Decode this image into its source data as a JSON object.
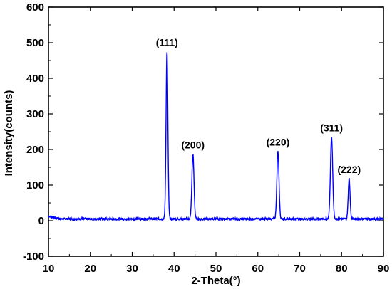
{
  "chart_data": {
    "type": "line",
    "title": "",
    "xlabel": "2-Theta(°)",
    "ylabel": "Intensity(counts)",
    "xlim": [
      10,
      90
    ],
    "ylim": [
      -100,
      600
    ],
    "xticks": [
      10,
      20,
      30,
      40,
      50,
      60,
      70,
      80,
      90
    ],
    "yticks": [
      -100,
      0,
      100,
      200,
      300,
      400,
      500,
      600
    ],
    "grid": false,
    "line_color": "#0000ff",
    "baseline": 5,
    "peaks": [
      {
        "label": "(111)",
        "x": 38.3,
        "y": 475
      },
      {
        "label": "(200)",
        "x": 44.5,
        "y": 187
      },
      {
        "label": "(220)",
        "x": 64.8,
        "y": 195
      },
      {
        "label": "(311)",
        "x": 77.6,
        "y": 235
      },
      {
        "label": "(222)",
        "x": 81.8,
        "y": 118
      }
    ]
  }
}
